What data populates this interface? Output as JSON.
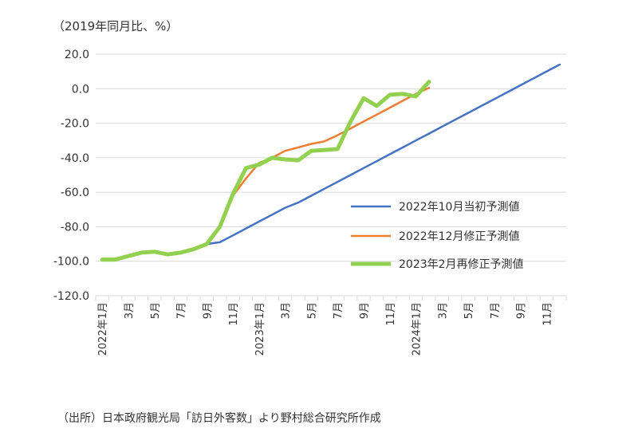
{
  "unit_label": "（2019年同月比、%）",
  "source_note": "（出所）日本政府観光局「訪日外客数」より野村総合研究所作成",
  "chart_data": {
    "type": "line",
    "title": "",
    "xlabel": "",
    "ylabel": "",
    "ylim": [
      -120,
      20
    ],
    "y_ticks": [
      "20.0",
      "0.0",
      "-20.0",
      "-40.0",
      "-60.0",
      "-80.0",
      "-100.0",
      "-120.0"
    ],
    "y_tick_values": [
      20,
      0,
      -20,
      -40,
      -60,
      -80,
      -100,
      -120
    ],
    "months": [
      "2022-01",
      "2022-02",
      "2022-03",
      "2022-04",
      "2022-05",
      "2022-06",
      "2022-07",
      "2022-08",
      "2022-09",
      "2022-10",
      "2022-11",
      "2022-12",
      "2023-01",
      "2023-02",
      "2023-03",
      "2023-04",
      "2023-05",
      "2023-06",
      "2023-07",
      "2023-08",
      "2023-09",
      "2023-10",
      "2023-11",
      "2023-12",
      "2024-01",
      "2024-02",
      "2024-03",
      "2024-04",
      "2024-05",
      "2024-06",
      "2024-07",
      "2024-08",
      "2024-09",
      "2024-10",
      "2024-11",
      "2024-12"
    ],
    "x_tick_labels": [
      "2022年1月",
      "",
      "3月",
      "",
      "5月",
      "",
      "7月",
      "",
      "9月",
      "",
      "11月",
      "",
      "2023年1月",
      "",
      "3月",
      "",
      "5月",
      "",
      "7月",
      "",
      "9月",
      "",
      "11月",
      "",
      "2024年1月",
      "",
      "3月",
      "",
      "5月",
      "",
      "7月",
      "",
      "9月",
      "",
      "11月",
      ""
    ],
    "grid": true,
    "legend_position": "right-middle",
    "series": [
      {
        "name": "2022年10月当初予測値",
        "color": "#4472C4",
        "values": [
          null,
          null,
          null,
          null,
          null,
          null,
          null,
          null,
          -90,
          -89,
          -85,
          -81,
          -77,
          -73,
          -69,
          -66,
          -62,
          -58,
          -54,
          -50,
          -46,
          -42,
          -38,
          -34,
          -30,
          -26,
          -22,
          -18,
          -14,
          -10,
          -6,
          -2,
          2,
          6,
          10,
          14
        ]
      },
      {
        "name": "2022年12月修正予測値",
        "color": "#ED7D31",
        "values": [
          -99,
          -99,
          -97,
          -95,
          -94.5,
          -96,
          -95,
          -93,
          -90,
          -80,
          -62,
          -52,
          -43,
          -40,
          -36,
          -34,
          -32,
          -30.5,
          -27,
          -23,
          -19,
          -15,
          -11,
          -7,
          -3,
          0.5,
          null,
          null,
          null,
          null,
          null,
          null,
          null,
          null,
          null,
          null
        ]
      },
      {
        "name": "2023年2月再修正予測値",
        "color": "#92D050",
        "values": [
          -99,
          -99,
          -97,
          -95,
          -94.5,
          -96,
          -95,
          -93,
          -90,
          -80,
          -61,
          -46,
          -44,
          -40,
          -41,
          -41.5,
          -36,
          -35.5,
          -35,
          -19,
          -5.5,
          -10,
          -3.5,
          -3,
          -4.5,
          4,
          null,
          null,
          null,
          null,
          null,
          null,
          null,
          null,
          null,
          null
        ]
      }
    ]
  }
}
